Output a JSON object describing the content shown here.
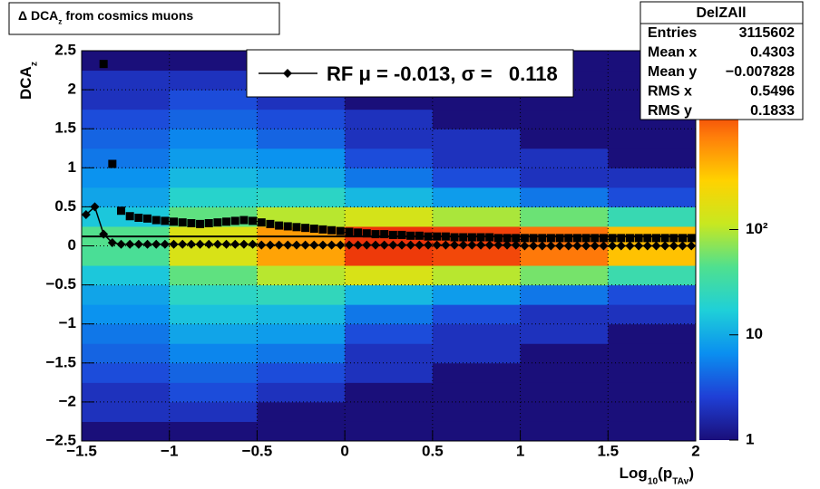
{
  "chart_data": {
    "type": "heatmap",
    "title": [
      "Δ DCA",
      "z",
      " from cosmics muons"
    ],
    "xlabel": [
      "Log",
      "10",
      "(p",
      "TAv",
      ")"
    ],
    "ylabel": [
      "DCA",
      "z"
    ],
    "xlim": [
      -1.5,
      2
    ],
    "ylim": [
      -2.5,
      2.5
    ],
    "xticks": [
      {
        "value": -1.5,
        "label": "−1.5"
      },
      {
        "value": -1,
        "label": "−1"
      },
      {
        "value": -0.5,
        "label": "−0.5"
      },
      0,
      0.5,
      1,
      1.5,
      2
    ],
    "yticks": [
      {
        "value": -2.5,
        "label": "−2.5"
      },
      {
        "value": -2,
        "label": "−2"
      },
      {
        "value": -1.5,
        "label": "−1.5"
      },
      {
        "value": -1,
        "label": "−1"
      },
      {
        "value": -0.5,
        "label": "−0.5"
      },
      0,
      0.5,
      1,
      1.5,
      2,
      2.5
    ],
    "grid": true,
    "zlim": [
      1,
      5000
    ],
    "zticks": [
      1,
      10,
      {
        "value": 100,
        "label": "10²"
      }
    ],
    "log_z": true,
    "colormap": [
      "#1a0f7a",
      "#1f3fd6",
      "#0a8ff0",
      "#1fd0d8",
      "#4fe08f",
      "#c8e820",
      "#ffd200",
      "#ff7f0a",
      "#e8200a",
      "#a00000"
    ],
    "heatmap": {
      "xbins": [
        -1.5,
        -1,
        -0.5,
        0,
        0.5,
        1,
        1.5,
        2
      ],
      "ybins": [
        -2.5,
        -2.25,
        -2,
        -1.75,
        -1.5,
        -1.25,
        -1,
        -0.75,
        -0.5,
        -0.25,
        0,
        0.25,
        0.5,
        0.75,
        1,
        1.25,
        1.5,
        1.75,
        2,
        2.25,
        2.5
      ],
      "z": [
        [
          1,
          1,
          1,
          1,
          1,
          1,
          1
        ],
        [
          2,
          2,
          1,
          1,
          1,
          1,
          1
        ],
        [
          2,
          3,
          2,
          1,
          1,
          1,
          1
        ],
        [
          3,
          4,
          3,
          2,
          1,
          1,
          1
        ],
        [
          4,
          6,
          5,
          2,
          2,
          1,
          1
        ],
        [
          5,
          9,
          8,
          3,
          2,
          2,
          1
        ],
        [
          7,
          14,
          12,
          5,
          3,
          2,
          2
        ],
        [
          9,
          22,
          25,
          12,
          8,
          5,
          3
        ],
        [
          15,
          50,
          100,
          150,
          100,
          60,
          30
        ],
        [
          40,
          150,
          500,
          1500,
          1300,
          800,
          350
        ],
        [
          45,
          160,
          550,
          1600,
          1400,
          850,
          380
        ],
        [
          15,
          50,
          100,
          140,
          90,
          55,
          28
        ],
        [
          9,
          20,
          22,
          12,
          8,
          5,
          3
        ],
        [
          7,
          12,
          10,
          5,
          3,
          2,
          2
        ],
        [
          5,
          8,
          7,
          3,
          2,
          2,
          1
        ],
        [
          4,
          6,
          4,
          2,
          2,
          1,
          1
        ],
        [
          3,
          4,
          3,
          2,
          1,
          1,
          1
        ],
        [
          2,
          3,
          2,
          1,
          1,
          1,
          1
        ],
        [
          2,
          2,
          1,
          1,
          1,
          1,
          1
        ],
        [
          1,
          1,
          1,
          1,
          1,
          1,
          1
        ]
      ]
    },
    "hline": 0.12,
    "series": [
      {
        "name": "RF μ = -0.013, σ =   0.118",
        "marker": "diamond",
        "color": "#000000",
        "x": [
          -1.475,
          -1.425,
          -1.375,
          -1.325,
          -1.275,
          -1.225,
          -1.175,
          -1.125,
          -1.075,
          -1.025,
          -0.975,
          -0.925,
          -0.875,
          -0.825,
          -0.775,
          -0.725,
          -0.675,
          -0.625,
          -0.575,
          -0.525,
          -0.475,
          -0.425,
          -0.375,
          -0.325,
          -0.275,
          -0.225,
          -0.175,
          -0.125,
          -0.075,
          -0.025,
          0.025,
          0.075,
          0.125,
          0.175,
          0.225,
          0.275,
          0.325,
          0.375,
          0.425,
          0.475,
          0.525,
          0.575,
          0.625,
          0.675,
          0.725,
          0.775,
          0.825,
          0.875,
          0.925,
          0.975,
          1.025,
          1.075,
          1.125,
          1.175,
          1.225,
          1.275,
          1.325,
          1.375,
          1.425,
          1.475,
          1.525,
          1.575,
          1.625,
          1.675,
          1.725,
          1.775,
          1.825,
          1.875,
          1.925,
          1.975
        ],
        "values": [
          0.4,
          0.5,
          0.15,
          0.04,
          0.02,
          0.02,
          0.02,
          0.02,
          0.02,
          0.02,
          0.02,
          0.02,
          0.02,
          0.02,
          0.02,
          0.02,
          0.02,
          0.02,
          0.02,
          0.02,
          0.01,
          0.01,
          0.01,
          0.01,
          0.01,
          0.01,
          0.01,
          0.01,
          0.01,
          0.01,
          0.01,
          0.01,
          0.01,
          0.01,
          0.01,
          0.01,
          0.01,
          0.01,
          0.01,
          0.01,
          0.01,
          0.01,
          0.01,
          0.01,
          0.01,
          0.01,
          0.01,
          0.01,
          0.01,
          0.01,
          0,
          0,
          0,
          0,
          0,
          0,
          0,
          0,
          0,
          0,
          0,
          0,
          0,
          0,
          0,
          0,
          0,
          0,
          0,
          0
        ]
      },
      {
        "marker": "square",
        "color": "#000000",
        "x": [
          -1.375,
          -1.325,
          -1.275,
          -1.225,
          -1.175,
          -1.125,
          -1.075,
          -1.025,
          -0.975,
          -0.925,
          -0.875,
          -0.825,
          -0.775,
          -0.725,
          -0.675,
          -0.625,
          -0.575,
          -0.525,
          -0.475,
          -0.425,
          -0.375,
          -0.325,
          -0.275,
          -0.225,
          -0.175,
          -0.125,
          -0.075,
          -0.025,
          0.025,
          0.075,
          0.125,
          0.175,
          0.225,
          0.275,
          0.325,
          0.375,
          0.425,
          0.475,
          0.525,
          0.575,
          0.625,
          0.675,
          0.725,
          0.775,
          0.825,
          0.875,
          0.925,
          0.975,
          1.025,
          1.075,
          1.125,
          1.175,
          1.225,
          1.275,
          1.325,
          1.375,
          1.425,
          1.475,
          1.525,
          1.575,
          1.625,
          1.675,
          1.725,
          1.775,
          1.825,
          1.875,
          1.925,
          1.975
        ],
        "values": [
          2.33,
          1.05,
          0.45,
          0.38,
          0.36,
          0.35,
          0.33,
          0.32,
          0.31,
          0.3,
          0.29,
          0.28,
          0.29,
          0.3,
          0.31,
          0.32,
          0.33,
          0.32,
          0.3,
          0.28,
          0.26,
          0.25,
          0.24,
          0.23,
          0.22,
          0.21,
          0.2,
          0.19,
          0.18,
          0.17,
          0.16,
          0.15,
          0.15,
          0.14,
          0.14,
          0.13,
          0.13,
          0.12,
          0.12,
          0.12,
          0.11,
          0.11,
          0.11,
          0.11,
          0.11,
          0.1,
          0.1,
          0.1,
          0.1,
          0.1,
          0.1,
          0.1,
          0.1,
          0.1,
          0.1,
          0.1,
          0.1,
          0.1,
          0.1,
          0.1,
          0.1,
          0.1,
          0.1,
          0.1,
          0.1,
          0.1,
          0.1,
          0.1
        ]
      }
    ],
    "stats": {
      "title": "DelZAll",
      "rows": [
        [
          "Entries",
          "3115602"
        ],
        [
          "Mean x",
          "0.4303"
        ],
        [
          "Mean y",
          "−0.007828"
        ],
        [
          "RMS x",
          "0.5496"
        ],
        [
          "RMS y",
          "0.1833"
        ]
      ]
    }
  }
}
